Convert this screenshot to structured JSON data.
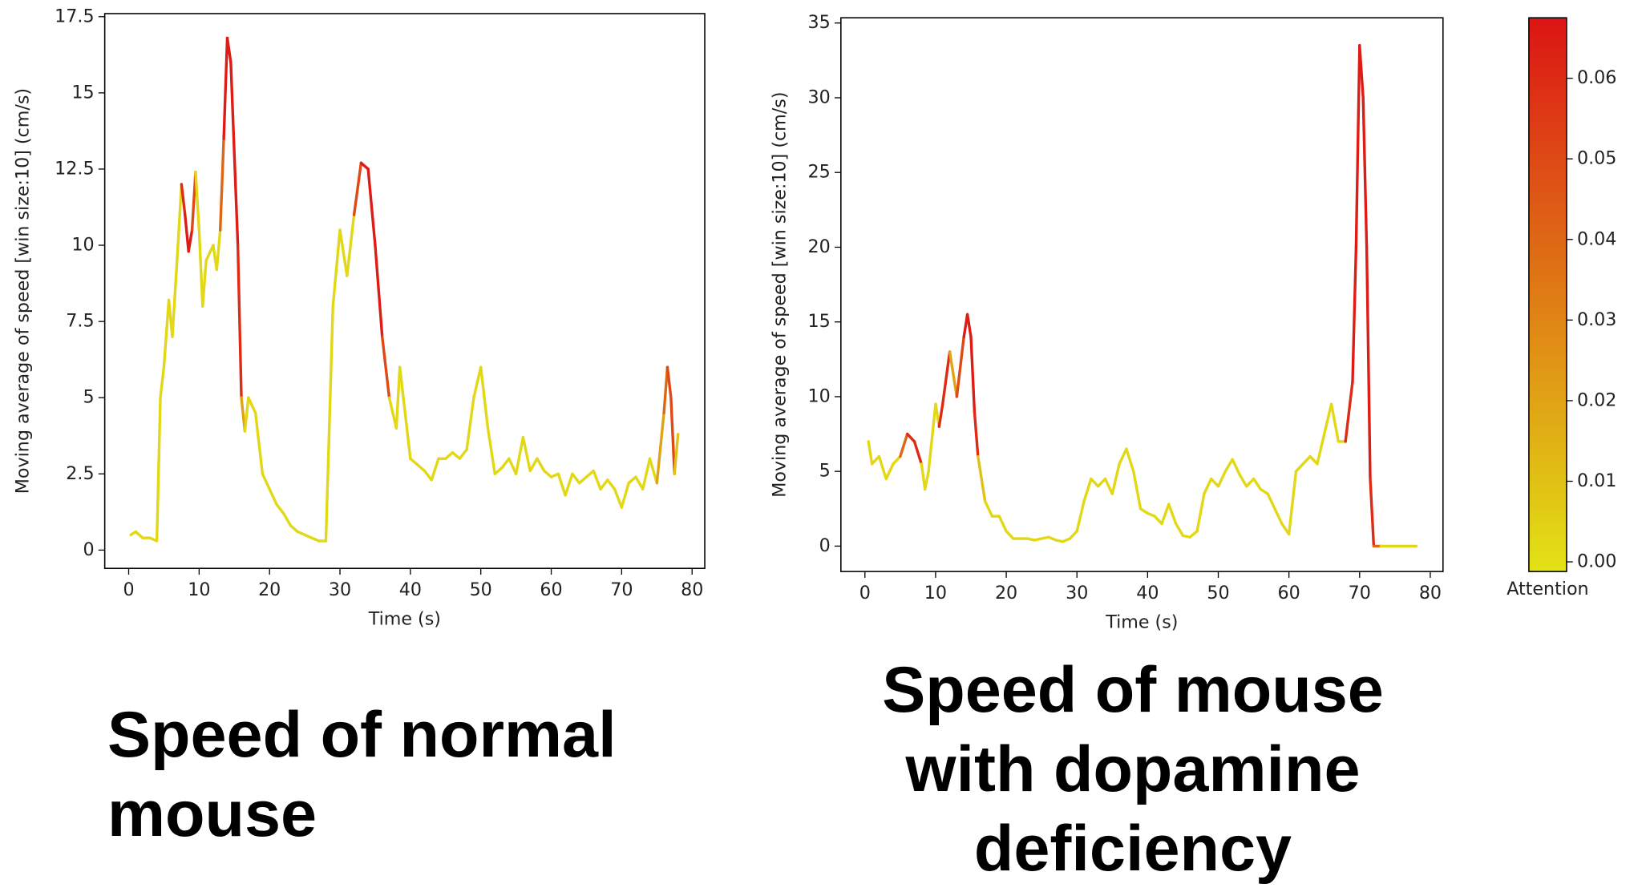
{
  "chart_data": [
    {
      "type": "line",
      "title": "Speed of normal mouse",
      "x_label": "Time (s)",
      "y_label": "Moving average of speed [win size:10] (cm/s)",
      "xlim": [
        -3.4,
        81.8
      ],
      "ylim": [
        -0.6,
        17.6
      ],
      "xticks": [
        0,
        10,
        20,
        30,
        40,
        50,
        60,
        70,
        80
      ],
      "yticks": [
        0,
        2.5,
        5,
        7.5,
        10,
        12.5,
        15,
        17.5
      ],
      "series": [
        {
          "x": [
            0.3,
            1,
            2,
            3,
            4,
            4.5,
            5,
            5.7,
            6.2,
            7,
            7.5,
            8,
            8.5,
            9,
            9.5,
            10,
            10.5,
            11,
            12,
            12.5,
            13,
            13.5,
            14,
            14.5,
            15,
            15.5,
            16,
            16.5,
            17,
            18,
            19,
            20,
            21,
            22,
            23,
            24,
            25,
            26,
            27,
            28,
            29,
            30,
            31,
            32,
            33,
            34,
            35,
            36,
            37,
            38,
            38.5,
            39,
            40,
            41,
            42,
            43,
            44,
            45,
            46,
            47,
            48,
            49,
            50,
            51,
            52,
            53,
            54,
            55,
            56,
            57,
            58,
            59,
            60,
            61,
            62,
            63,
            64,
            65,
            66,
            67,
            68,
            69,
            70,
            71,
            72,
            73,
            74,
            75,
            76,
            76.5,
            77,
            77.5,
            78
          ],
          "values": [
            0.5,
            0.6,
            0.4,
            0.4,
            0.3,
            5,
            6,
            8.2,
            7,
            10,
            12,
            11,
            9.8,
            10.5,
            12.4,
            10.5,
            8,
            9.5,
            10,
            9.2,
            10.5,
            13.5,
            16.8,
            16,
            13,
            10,
            5,
            3.9,
            5,
            4.5,
            2.5,
            2,
            1.5,
            1.2,
            0.8,
            0.6,
            0.5,
            0.4,
            0.3,
            0.3,
            8,
            10.5,
            9,
            11,
            12.7,
            12.5,
            10,
            7,
            5,
            4,
            6,
            5,
            3,
            2.8,
            2.6,
            2.3,
            3,
            3,
            3.2,
            3,
            3.3,
            5,
            6,
            4,
            2.5,
            2.7,
            3,
            2.5,
            3.7,
            2.6,
            3,
            2.6,
            2.4,
            2.5,
            1.8,
            2.5,
            2.2,
            2.4,
            2.6,
            2,
            2.3,
            2,
            1.4,
            2.2,
            2.4,
            2,
            3,
            2.2,
            4.5,
            6,
            5,
            2.5,
            3.8
          ],
          "attention": [
            0.002,
            0.002,
            0.002,
            0.002,
            0.002,
            0.002,
            0.002,
            0.002,
            0.002,
            0.002,
            0.002,
            0.06,
            0.065,
            0.05,
            0.002,
            0.002,
            0.002,
            0.002,
            0.002,
            0.002,
            0.002,
            0.04,
            0.065,
            0.065,
            0.065,
            0.06,
            0.02,
            0.002,
            0.002,
            0.002,
            0.002,
            0.002,
            0.002,
            0.002,
            0.002,
            0.002,
            0.002,
            0.002,
            0.002,
            0.002,
            0.002,
            0.002,
            0.002,
            0.002,
            0.05,
            0.065,
            0.065,
            0.05,
            0.002,
            0.002,
            0.002,
            0.002,
            0.002,
            0.002,
            0.002,
            0.002,
            0.002,
            0.002,
            0.002,
            0.002,
            0.002,
            0.002,
            0.002,
            0.002,
            0.002,
            0.002,
            0.002,
            0.002,
            0.002,
            0.002,
            0.002,
            0.002,
            0.002,
            0.002,
            0.002,
            0.002,
            0.002,
            0.002,
            0.002,
            0.002,
            0.002,
            0.002,
            0.002,
            0.002,
            0.002,
            0.002,
            0.002,
            0.002,
            0.02,
            0.04,
            0.05,
            0.01,
            0.002
          ]
        }
      ]
    },
    {
      "type": "line",
      "title": "Speed of mouse with dopamine deficiency",
      "x_label": "Time (s)",
      "y_label": "Moving average of speed [win size:10] (cm/s)",
      "xlim": [
        -3.4,
        81.8
      ],
      "ylim": [
        -1.7,
        35.35
      ],
      "xticks": [
        0,
        10,
        20,
        30,
        40,
        50,
        60,
        70,
        80
      ],
      "yticks": [
        0,
        5,
        10,
        15,
        20,
        25,
        30,
        35
      ],
      "series": [
        {
          "x": [
            0.5,
            1,
            2,
            3,
            4,
            5,
            6,
            7,
            8,
            8.5,
            9,
            10,
            10.5,
            11,
            12,
            13,
            14,
            14.5,
            15,
            15.5,
            16,
            17,
            18,
            19,
            20,
            21,
            22,
            23,
            24,
            25,
            26,
            27,
            28,
            29,
            30,
            31,
            32,
            33,
            34,
            35,
            36,
            37,
            38,
            39,
            40,
            41,
            42,
            43,
            44,
            45,
            46,
            47,
            48,
            49,
            50,
            51,
            52,
            53,
            54,
            55,
            56,
            57,
            58,
            59,
            60,
            61,
            62,
            63,
            64,
            65,
            66,
            67,
            68,
            69,
            69.5,
            70,
            70.5,
            71,
            71.5,
            72,
            73,
            74,
            75,
            76,
            77,
            78
          ],
          "values": [
            7,
            5.5,
            6,
            4.5,
            5.5,
            6,
            7.5,
            7,
            5.5,
            3.8,
            5,
            9.5,
            8,
            9.5,
            13,
            10,
            14,
            15.5,
            14,
            9,
            6,
            3,
            2,
            2,
            1,
            0.5,
            0.5,
            0.5,
            0.4,
            0.5,
            0.6,
            0.4,
            0.3,
            0.5,
            1,
            3,
            4.5,
            4,
            4.5,
            3.5,
            5.5,
            6.5,
            5,
            2.5,
            2.2,
            2,
            1.5,
            2.8,
            1.5,
            0.7,
            0.6,
            1,
            3.5,
            4.5,
            4,
            5,
            5.8,
            4.8,
            4,
            4.5,
            3.8,
            3.5,
            2.5,
            1.5,
            0.8,
            5,
            5.5,
            6,
            5.5,
            7.5,
            9.5,
            7,
            7,
            11,
            20,
            33.5,
            30,
            20,
            4.5,
            0,
            0,
            0,
            0,
            0,
            0,
            0
          ],
          "attention": [
            0.002,
            0.002,
            0.002,
            0.002,
            0.002,
            0.002,
            0.04,
            0.06,
            0.002,
            0.002,
            0.002,
            0.002,
            0.002,
            0.06,
            0.02,
            0.002,
            0.05,
            0.065,
            0.065,
            0.06,
            0.01,
            0.002,
            0.002,
            0.002,
            0.002,
            0.002,
            0.002,
            0.002,
            0.002,
            0.002,
            0.002,
            0.002,
            0.002,
            0.002,
            0.002,
            0.002,
            0.002,
            0.002,
            0.002,
            0.002,
            0.002,
            0.002,
            0.002,
            0.002,
            0.002,
            0.002,
            0.002,
            0.002,
            0.002,
            0.002,
            0.002,
            0.002,
            0.002,
            0.002,
            0.002,
            0.002,
            0.002,
            0.002,
            0.002,
            0.002,
            0.002,
            0.002,
            0.002,
            0.002,
            0.002,
            0.002,
            0.002,
            0.002,
            0.002,
            0.002,
            0.002,
            0.002,
            0.002,
            0.06,
            0.065,
            0.05,
            0.065,
            0.065,
            0.06,
            0.04,
            0.002,
            0.002,
            0.002,
            0.002,
            0.002,
            0.002
          ]
        }
      ]
    }
  ],
  "colorbar": {
    "label": "Attention",
    "clim": [
      -0.0012,
      0.0675
    ],
    "colors": [
      "#e2e215",
      "#dc1515"
    ],
    "ticks": [
      {
        "value": 0,
        "label": "0.00"
      },
      {
        "value": 0.01,
        "label": "0.01"
      },
      {
        "value": 0.02,
        "label": "0.02"
      },
      {
        "value": 0.03,
        "label": "0.03"
      },
      {
        "value": 0.04,
        "label": "0.04"
      },
      {
        "value": 0.05,
        "label": "0.05"
      },
      {
        "value": 0.06,
        "label": "0.06"
      }
    ]
  }
}
